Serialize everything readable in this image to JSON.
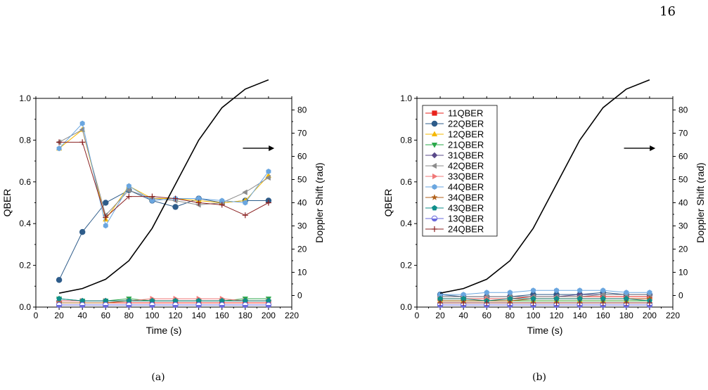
{
  "page_number": "16",
  "chart_data": [
    {
      "type": "line",
      "caption": "(a)",
      "xlabel": "Time (s)",
      "ylabel": "QBER",
      "y2label": "Doppler Shift (rad)",
      "xlim": [
        0,
        220
      ],
      "ylim": [
        0,
        1.0
      ],
      "y2lim": [
        -5,
        85
      ],
      "xticks": [
        0,
        20,
        40,
        60,
        80,
        100,
        120,
        140,
        160,
        180,
        200,
        220
      ],
      "yticks": [
        0.0,
        0.2,
        0.4,
        0.6,
        0.8,
        1.0
      ],
      "y2ticks": [
        0,
        10,
        20,
        30,
        40,
        50,
        60,
        70,
        80
      ],
      "grid": false,
      "legend": "none",
      "x": [
        20,
        40,
        60,
        80,
        100,
        120,
        140,
        160,
        180,
        200
      ],
      "series": [
        {
          "name": "11QBER",
          "marker": "square",
          "color": "#e8221b",
          "values": [
            0.02,
            0.02,
            0.02,
            0.02,
            0.02,
            0.02,
            0.02,
            0.02,
            0.02,
            0.02
          ]
        },
        {
          "name": "22QBER",
          "marker": "circle",
          "color": "#2e5c8a",
          "values": [
            0.13,
            0.36,
            0.5,
            0.56,
            0.51,
            0.48,
            0.52,
            0.5,
            0.51,
            0.51
          ]
        },
        {
          "name": "12QBER",
          "marker": "triangle-up",
          "color": "#f5b800",
          "values": [
            0.76,
            0.85,
            0.42,
            0.58,
            0.52,
            0.52,
            0.51,
            0.5,
            0.51,
            0.63
          ]
        },
        {
          "name": "21QBER",
          "marker": "triangle-down",
          "color": "#2aa84a",
          "values": [
            0.04,
            0.03,
            0.03,
            0.04,
            0.03,
            0.03,
            0.03,
            0.03,
            0.04,
            0.04
          ]
        },
        {
          "name": "31QBER",
          "marker": "diamond",
          "color": "#5a4a8a",
          "values": [
            0.03,
            0.03,
            0.03,
            0.03,
            0.03,
            0.03,
            0.03,
            0.03,
            0.03,
            0.03
          ]
        },
        {
          "name": "42QBER",
          "marker": "triangle-left",
          "color": "#8c8c8c",
          "values": [
            0.79,
            0.85,
            0.44,
            0.56,
            0.52,
            0.51,
            0.49,
            0.5,
            0.55,
            0.62
          ]
        },
        {
          "name": "33QBER",
          "marker": "triangle-right",
          "color": "#f07878",
          "values": [
            0.03,
            0.03,
            0.03,
            0.03,
            0.04,
            0.04,
            0.04,
            0.04,
            0.03,
            0.03
          ]
        },
        {
          "name": "44QBER",
          "marker": "hexagon",
          "color": "#6aa6e0",
          "values": [
            0.76,
            0.88,
            0.39,
            0.58,
            0.51,
            0.52,
            0.52,
            0.51,
            0.5,
            0.65
          ]
        },
        {
          "name": "34QBER",
          "marker": "star",
          "color": "#b0601a",
          "values": [
            0.02,
            0.02,
            0.02,
            0.03,
            0.03,
            0.03,
            0.03,
            0.03,
            0.03,
            0.03
          ]
        },
        {
          "name": "43QBER",
          "marker": "pentagon",
          "color": "#0f8f8a",
          "values": [
            0.04,
            0.03,
            0.03,
            0.03,
            0.03,
            0.03,
            0.03,
            0.03,
            0.03,
            0.03
          ]
        },
        {
          "name": "13QBER",
          "marker": "circle-half",
          "color": "#6a6adc",
          "values": [
            0.01,
            0.01,
            0.01,
            0.01,
            0.01,
            0.01,
            0.01,
            0.01,
            0.01,
            0.01
          ]
        },
        {
          "name": "24QBER",
          "marker": "plus",
          "color": "#8a2020",
          "values": [
            0.79,
            0.79,
            0.43,
            0.53,
            0.53,
            0.52,
            0.5,
            0.49,
            0.44,
            0.5
          ]
        }
      ],
      "secondary_series": {
        "axis": "right",
        "color": "#000000",
        "x": [
          20,
          40,
          60,
          80,
          100,
          120,
          140,
          160,
          180,
          200
        ],
        "values": [
          1,
          3,
          7,
          15,
          29,
          48,
          67,
          81,
          89,
          93
        ]
      }
    },
    {
      "type": "line",
      "caption": "(b)",
      "xlabel": "Time (s)",
      "ylabel": "QBER",
      "y2label": "Doppler Shift (rad)",
      "xlim": [
        0,
        220
      ],
      "ylim": [
        0,
        1.0
      ],
      "y2lim": [
        -5,
        85
      ],
      "xticks": [
        0,
        20,
        40,
        60,
        80,
        100,
        120,
        140,
        160,
        180,
        200,
        220
      ],
      "yticks": [
        0.0,
        0.2,
        0.4,
        0.6,
        0.8,
        1.0
      ],
      "y2ticks": [
        0,
        10,
        20,
        30,
        40,
        50,
        60,
        70,
        80
      ],
      "grid": false,
      "legend": "top-left",
      "x": [
        20,
        40,
        60,
        80,
        100,
        120,
        140,
        160,
        180,
        200
      ],
      "series": [
        {
          "name": "11QBER",
          "marker": "square",
          "color": "#e8221b",
          "values": [
            0.04,
            0.04,
            0.04,
            0.04,
            0.05,
            0.05,
            0.05,
            0.05,
            0.05,
            0.05
          ]
        },
        {
          "name": "22QBER",
          "marker": "circle",
          "color": "#2e5c8a",
          "values": [
            0.06,
            0.05,
            0.05,
            0.05,
            0.06,
            0.06,
            0.06,
            0.07,
            0.06,
            0.06
          ]
        },
        {
          "name": "12QBER",
          "marker": "triangle-up",
          "color": "#f5b800",
          "values": [
            0.03,
            0.03,
            0.03,
            0.03,
            0.03,
            0.03,
            0.03,
            0.03,
            0.03,
            0.03
          ]
        },
        {
          "name": "21QBER",
          "marker": "triangle-down",
          "color": "#2aa84a",
          "values": [
            0.03,
            0.03,
            0.03,
            0.03,
            0.03,
            0.03,
            0.03,
            0.03,
            0.03,
            0.03
          ]
        },
        {
          "name": "31QBER",
          "marker": "diamond",
          "color": "#5a4a8a",
          "values": [
            0.05,
            0.05,
            0.05,
            0.05,
            0.05,
            0.05,
            0.06,
            0.06,
            0.06,
            0.06
          ]
        },
        {
          "name": "42QBER",
          "marker": "triangle-left",
          "color": "#8c8c8c",
          "values": [
            0.05,
            0.05,
            0.05,
            0.05,
            0.05,
            0.05,
            0.05,
            0.06,
            0.06,
            0.06
          ]
        },
        {
          "name": "33QBER",
          "marker": "triangle-right",
          "color": "#f07878",
          "values": [
            0.04,
            0.04,
            0.04,
            0.04,
            0.04,
            0.04,
            0.04,
            0.04,
            0.04,
            0.04
          ]
        },
        {
          "name": "44QBER",
          "marker": "hexagon",
          "color": "#6aa6e0",
          "values": [
            0.06,
            0.06,
            0.07,
            0.07,
            0.08,
            0.08,
            0.08,
            0.08,
            0.07,
            0.07
          ]
        },
        {
          "name": "34QBER",
          "marker": "star",
          "color": "#b0601a",
          "values": [
            0.03,
            0.03,
            0.03,
            0.03,
            0.04,
            0.04,
            0.04,
            0.04,
            0.04,
            0.04
          ]
        },
        {
          "name": "43QBER",
          "marker": "pentagon",
          "color": "#0f8f8a",
          "values": [
            0.04,
            0.04,
            0.03,
            0.04,
            0.04,
            0.04,
            0.04,
            0.04,
            0.04,
            0.03
          ]
        },
        {
          "name": "13QBER",
          "marker": "circle-half",
          "color": "#6a6adc",
          "values": [
            0.01,
            0.01,
            0.01,
            0.01,
            0.01,
            0.01,
            0.01,
            0.01,
            0.01,
            0.01
          ]
        },
        {
          "name": "24QBER",
          "marker": "plus",
          "color": "#8a2020",
          "values": [
            0.02,
            0.02,
            0.02,
            0.02,
            0.02,
            0.02,
            0.02,
            0.02,
            0.02,
            0.02
          ]
        }
      ],
      "secondary_series": {
        "axis": "right",
        "color": "#000000",
        "x": [
          20,
          40,
          60,
          80,
          100,
          120,
          140,
          160,
          180,
          200
        ],
        "values": [
          1,
          3,
          7,
          15,
          29,
          48,
          67,
          81,
          89,
          93
        ]
      }
    }
  ]
}
